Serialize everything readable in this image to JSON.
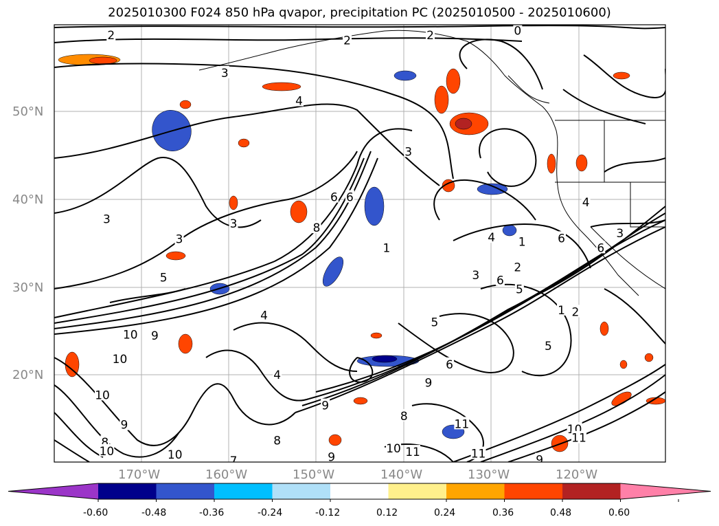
{
  "title": "2025010300 F024 850 hPa qvapor, precipitation PC (2025010500 - 2025010600)",
  "lon_labels": [
    "170°W",
    "160°W",
    "150°W",
    "140°W",
    "130°W",
    "120°W"
  ],
  "lat_labels": [
    "50°N",
    "40°N",
    "30°N",
    "20°N"
  ],
  "colorbar": {
    "ticks": [
      "-0.60",
      "-0.48",
      "-0.36",
      "-0.24",
      "-0.12",
      "0.12",
      "0.24",
      "0.36",
      "0.48",
      "0.60"
    ],
    "colors": [
      "#9b35c8",
      "#00008b",
      "#3355cc",
      "#00bfff",
      "#b0e0f8",
      "#ffffff",
      "#fff08c",
      "#ffa500",
      "#ff4500",
      "#b22222",
      "#ff80a8"
    ]
  },
  "contour_labels": [
    {
      "text": "2",
      "lon": -173.5,
      "lat": 58.8
    },
    {
      "text": "2",
      "lon": -146.5,
      "lat": 58.2
    },
    {
      "text": "2",
      "lon": -137,
      "lat": 58.8
    },
    {
      "text": "0",
      "lon": -127,
      "lat": 59.3
    },
    {
      "text": "3",
      "lon": -160.5,
      "lat": 54.5
    },
    {
      "text": "4",
      "lon": -152,
      "lat": 51.3
    },
    {
      "text": "3",
      "lon": -139.5,
      "lat": 45.5
    },
    {
      "text": "3",
      "lon": -174,
      "lat": 37.8
    },
    {
      "text": "3",
      "lon": -159.5,
      "lat": 37.3
    },
    {
      "text": "3",
      "lon": -165.7,
      "lat": 35.5
    },
    {
      "text": "6",
      "lon": -148,
      "lat": 40.3
    },
    {
      "text": "6",
      "lon": -146.2,
      "lat": 40.3
    },
    {
      "text": "8",
      "lon": -150,
      "lat": 36.8
    },
    {
      "text": "1",
      "lon": -142,
      "lat": 34.5
    },
    {
      "text": "4",
      "lon": -130,
      "lat": 35.7
    },
    {
      "text": "1",
      "lon": -126.5,
      "lat": 35.2
    },
    {
      "text": "6",
      "lon": -122,
      "lat": 35.6
    },
    {
      "text": "2",
      "lon": -127,
      "lat": 32.3
    },
    {
      "text": "3",
      "lon": -131.8,
      "lat": 31.4
    },
    {
      "text": "6",
      "lon": -129,
      "lat": 30.8
    },
    {
      "text": "5",
      "lon": -126.8,
      "lat": 29.8
    },
    {
      "text": "5",
      "lon": -167.5,
      "lat": 31.1
    },
    {
      "text": "1",
      "lon": -122,
      "lat": 27.4
    },
    {
      "text": "2",
      "lon": -120.4,
      "lat": 27.2
    },
    {
      "text": "5",
      "lon": -136.5,
      "lat": 26.0
    },
    {
      "text": "4",
      "lon": -156,
      "lat": 26.8
    },
    {
      "text": "10",
      "lon": -171.3,
      "lat": 24.6
    },
    {
      "text": "9",
      "lon": -168.5,
      "lat": 24.5
    },
    {
      "text": "10",
      "lon": -172.5,
      "lat": 21.8
    },
    {
      "text": "5",
      "lon": -123.5,
      "lat": 23.3
    },
    {
      "text": "6",
      "lon": -134.8,
      "lat": 21.2
    },
    {
      "text": "4",
      "lon": -154.5,
      "lat": 20.0
    },
    {
      "text": "9",
      "lon": -137.2,
      "lat": 19.1
    },
    {
      "text": "10",
      "lon": -174.5,
      "lat": 17.7
    },
    {
      "text": "9",
      "lon": -149,
      "lat": 16.5
    },
    {
      "text": "8",
      "lon": -140,
      "lat": 15.3
    },
    {
      "text": "9",
      "lon": -172,
      "lat": 14.3
    },
    {
      "text": "11",
      "lon": -133.4,
      "lat": 14.4
    },
    {
      "text": "8",
      "lon": -174.2,
      "lat": 12.3
    },
    {
      "text": "10",
      "lon": -174,
      "lat": 11.3
    },
    {
      "text": "10",
      "lon": -141.2,
      "lat": 11.6
    },
    {
      "text": "11",
      "lon": -139,
      "lat": 11.2
    },
    {
      "text": "11",
      "lon": -131.5,
      "lat": 11.0
    },
    {
      "text": "8",
      "lon": -154.5,
      "lat": 12.5
    },
    {
      "text": "9",
      "lon": -148.3,
      "lat": 10.6
    },
    {
      "text": "10",
      "lon": -166.2,
      "lat": 10.9
    },
    {
      "text": "7",
      "lon": -159.5,
      "lat": 10.2
    },
    {
      "text": "10",
      "lon": -120.5,
      "lat": 13.8
    },
    {
      "text": "11",
      "lon": -120,
      "lat": 12.8
    },
    {
      "text": "9",
      "lon": -124.5,
      "lat": 10.3
    },
    {
      "text": "6",
      "lon": -117.5,
      "lat": 34.5
    },
    {
      "text": "3",
      "lon": -115.3,
      "lat": 36.2
    },
    {
      "text": "4",
      "lon": -119.2,
      "lat": 39.7
    }
  ]
}
